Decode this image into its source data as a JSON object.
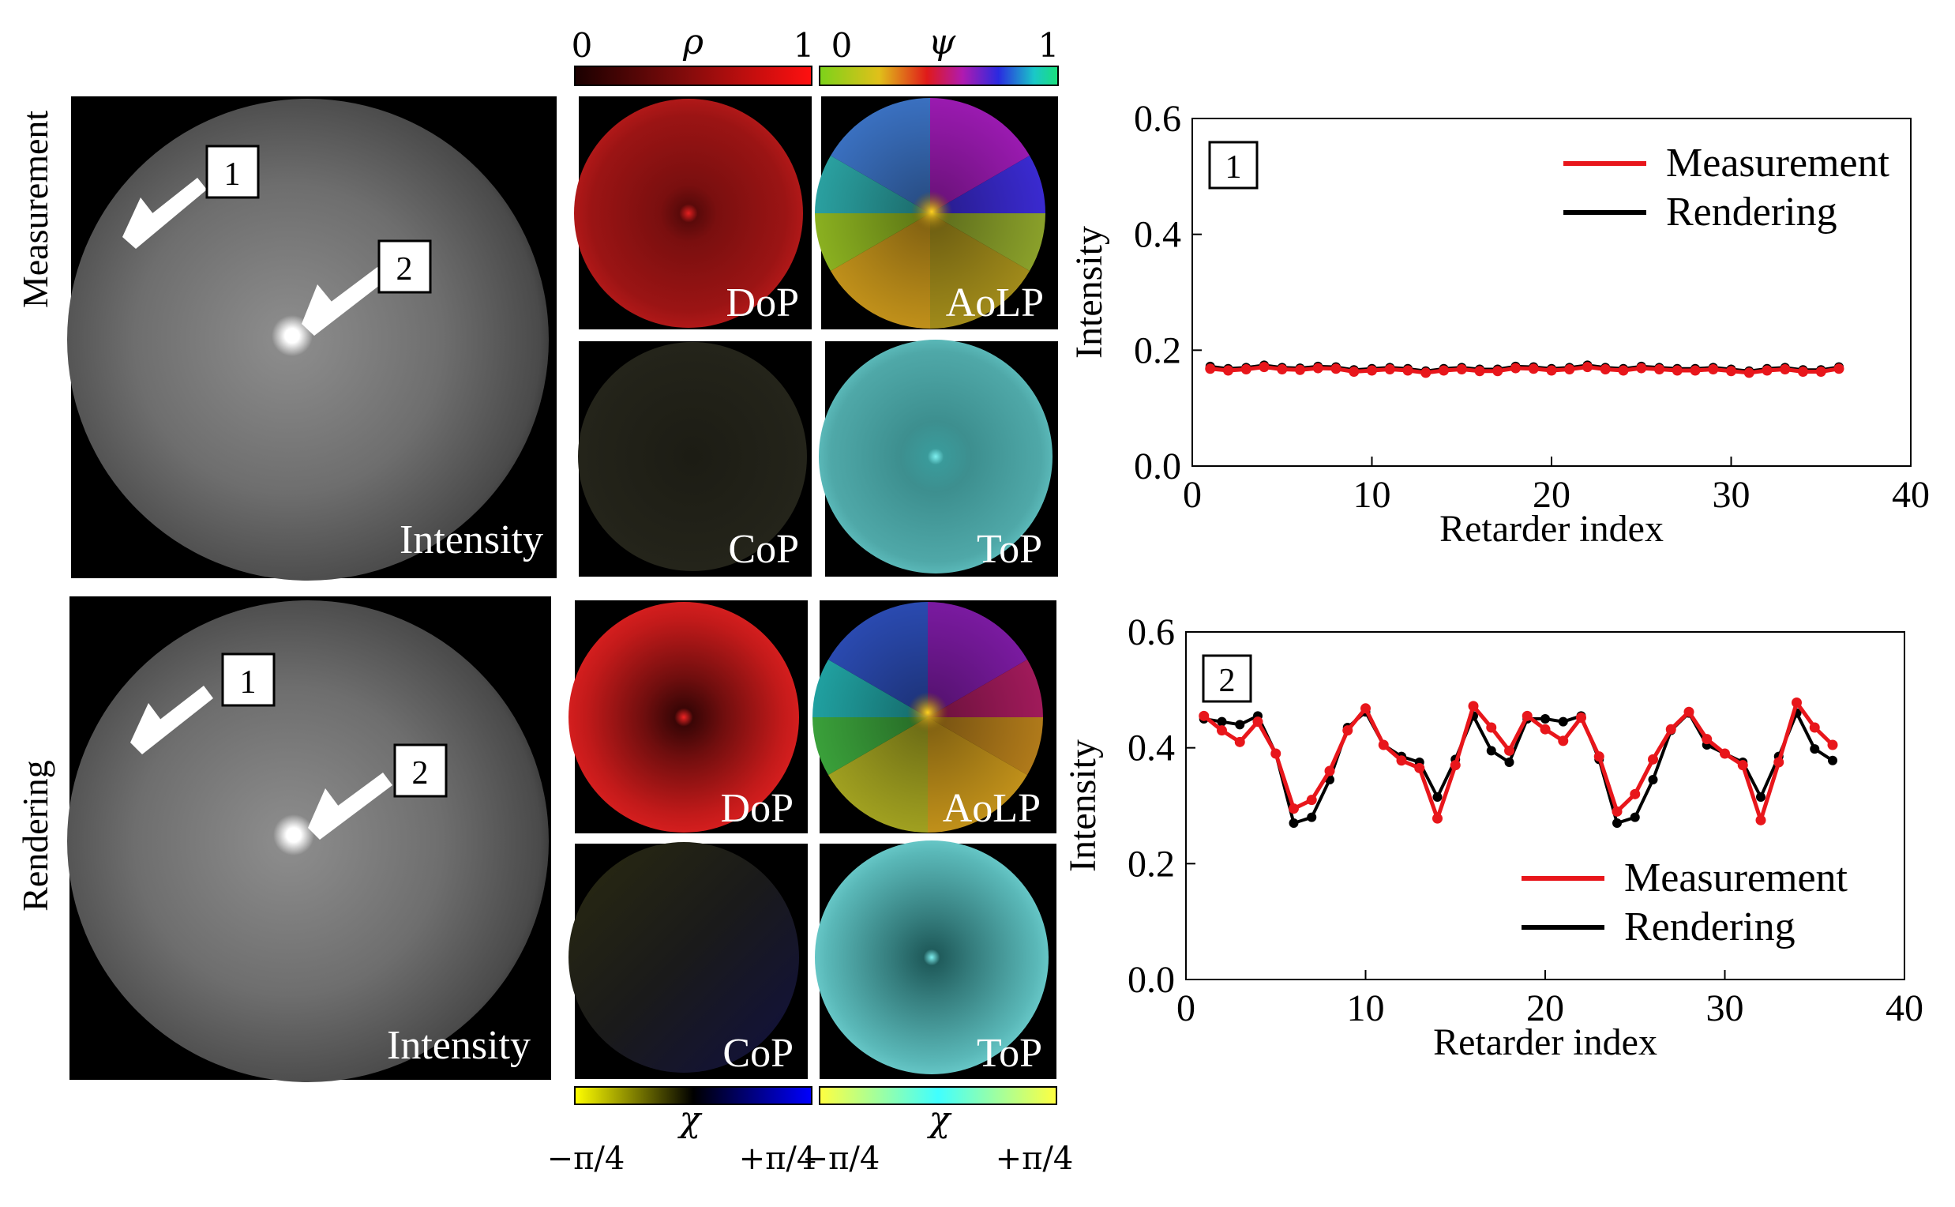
{
  "rows": [
    {
      "label": "Measurement",
      "intensity_label": "Intensity",
      "callout_1": "1",
      "callout_2": "2"
    },
    {
      "label": "Rendering",
      "intensity_label": "Intensity",
      "callout_1": "1",
      "callout_2": "2"
    }
  ],
  "tiles": {
    "dop": "DoP",
    "aolp": "AoLP",
    "cop": "CoP",
    "top": "ToP"
  },
  "colorbars": {
    "rho": {
      "symbol": "ρ",
      "min": "0",
      "max": "1"
    },
    "psi": {
      "symbol": "ψ",
      "min": "0",
      "max": "1"
    },
    "chi_cop": {
      "symbol": "χ",
      "min": "−π/4",
      "max": "+π/4"
    },
    "chi_top": {
      "symbol": "χ",
      "min": "−π/4",
      "max": "+π/4"
    }
  },
  "colors": {
    "measurement": "#e8161b",
    "rendering": "#000000"
  },
  "chart_data": [
    {
      "type": "line",
      "title": "",
      "panel_label": "1",
      "xlabel": "Retarder index",
      "ylabel": "Intensity",
      "xlim": [
        0,
        40
      ],
      "ylim": [
        0.0,
        0.6
      ],
      "xticks": [
        "0",
        "10",
        "20",
        "30",
        "40"
      ],
      "yticks": [
        "0.0",
        "0.2",
        "0.4",
        "0.6"
      ],
      "legend_position": "top-right",
      "x": [
        1,
        2,
        3,
        4,
        5,
        6,
        7,
        8,
        9,
        10,
        11,
        12,
        13,
        14,
        15,
        16,
        17,
        18,
        19,
        20,
        21,
        22,
        23,
        24,
        25,
        26,
        27,
        28,
        29,
        30,
        31,
        32,
        33,
        34,
        35,
        36
      ],
      "series": [
        {
          "name": "Measurement",
          "values": [
            0.168,
            0.165,
            0.167,
            0.171,
            0.167,
            0.166,
            0.169,
            0.168,
            0.163,
            0.165,
            0.167,
            0.165,
            0.161,
            0.165,
            0.167,
            0.164,
            0.164,
            0.169,
            0.168,
            0.165,
            0.167,
            0.171,
            0.167,
            0.165,
            0.169,
            0.167,
            0.165,
            0.165,
            0.167,
            0.164,
            0.161,
            0.165,
            0.167,
            0.163,
            0.163,
            0.168
          ]
        },
        {
          "name": "Rendering",
          "values": [
            0.172,
            0.168,
            0.17,
            0.174,
            0.17,
            0.169,
            0.172,
            0.171,
            0.166,
            0.168,
            0.17,
            0.168,
            0.164,
            0.168,
            0.17,
            0.167,
            0.167,
            0.172,
            0.171,
            0.168,
            0.17,
            0.174,
            0.17,
            0.168,
            0.172,
            0.17,
            0.168,
            0.168,
            0.17,
            0.167,
            0.164,
            0.168,
            0.17,
            0.166,
            0.166,
            0.171
          ]
        }
      ]
    },
    {
      "type": "line",
      "title": "",
      "panel_label": "2",
      "xlabel": "Retarder index",
      "ylabel": "Intensity",
      "xlim": [
        0,
        40
      ],
      "ylim": [
        0.0,
        0.6
      ],
      "xticks": [
        "0",
        "10",
        "20",
        "30",
        "40"
      ],
      "yticks": [
        "0.0",
        "0.2",
        "0.4",
        "0.6"
      ],
      "legend_position": "bottom-right",
      "x": [
        1,
        2,
        3,
        4,
        5,
        6,
        7,
        8,
        9,
        10,
        11,
        12,
        13,
        14,
        15,
        16,
        17,
        18,
        19,
        20,
        21,
        22,
        23,
        24,
        25,
        26,
        27,
        28,
        29,
        30,
        31,
        32,
        33,
        34,
        35,
        36
      ],
      "series": [
        {
          "name": "Measurement",
          "values": [
            0.455,
            0.43,
            0.41,
            0.445,
            0.39,
            0.295,
            0.31,
            0.36,
            0.43,
            0.468,
            0.405,
            0.378,
            0.365,
            0.278,
            0.37,
            0.472,
            0.435,
            0.395,
            0.455,
            0.432,
            0.412,
            0.452,
            0.385,
            0.29,
            0.32,
            0.38,
            0.432,
            0.462,
            0.415,
            0.39,
            0.37,
            0.275,
            0.375,
            0.478,
            0.435,
            0.405
          ]
        },
        {
          "name": "Rendering",
          "values": [
            0.45,
            0.445,
            0.44,
            0.455,
            0.39,
            0.27,
            0.28,
            0.345,
            0.435,
            0.462,
            0.405,
            0.385,
            0.375,
            0.315,
            0.38,
            0.455,
            0.395,
            0.375,
            0.45,
            0.45,
            0.445,
            0.455,
            0.38,
            0.27,
            0.28,
            0.345,
            0.43,
            0.46,
            0.405,
            0.39,
            0.375,
            0.315,
            0.385,
            0.46,
            0.398,
            0.378
          ]
        }
      ]
    }
  ]
}
